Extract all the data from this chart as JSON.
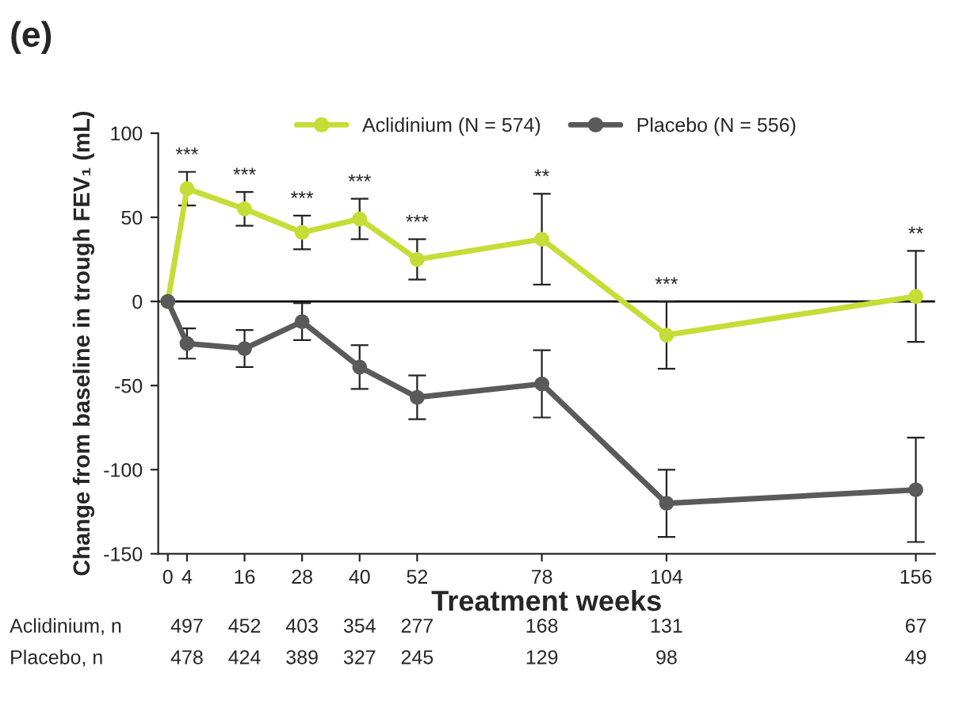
{
  "chart_data": {
    "type": "line",
    "xlabel": "Treatment weeks",
    "ylabel": "Change from baseline in trough FEV₁ (mL)",
    "x": [
      0,
      4,
      16,
      28,
      40,
      52,
      78,
      104,
      156
    ],
    "series": [
      {
        "name": "Aclidinium (N = 574)",
        "color": "#c5dd36",
        "values": [
          0,
          67,
          55,
          41,
          49,
          25,
          37,
          -20,
          3
        ],
        "errors": [
          null,
          10,
          10,
          10,
          12,
          12,
          27,
          20,
          27
        ]
      },
      {
        "name": "Placebo (N = 556)",
        "color": "#5a5a5a",
        "values": [
          0,
          -25,
          -28,
          -12,
          -39,
          -57,
          -49,
          -120,
          -112
        ],
        "errors": [
          null,
          9,
          11,
          11,
          13,
          13,
          20,
          20,
          31
        ]
      }
    ],
    "xlim": [
      -2,
      160
    ],
    "xticks": [
      0,
      4,
      16,
      28,
      40,
      52,
      78,
      104,
      156
    ],
    "ylim": [
      -150,
      100
    ],
    "yticks": [
      -150,
      -100,
      -50,
      0,
      50,
      100
    ],
    "ref_lines": [
      {
        "axis": "y",
        "value": 0,
        "color": "#000000"
      }
    ],
    "marker": "circle",
    "legend": "top",
    "grid": false,
    "annotations": [
      "(e)",
      "***",
      "***",
      "***",
      "***",
      "***",
      "**",
      "***",
      "**",
      "Aclidinium, n",
      "497",
      "452",
      "403",
      "354",
      "277",
      "168",
      "131",
      "67",
      "Placebo, n",
      "478",
      "424",
      "389",
      "327",
      "245",
      "129",
      "98",
      "49"
    ]
  }
}
